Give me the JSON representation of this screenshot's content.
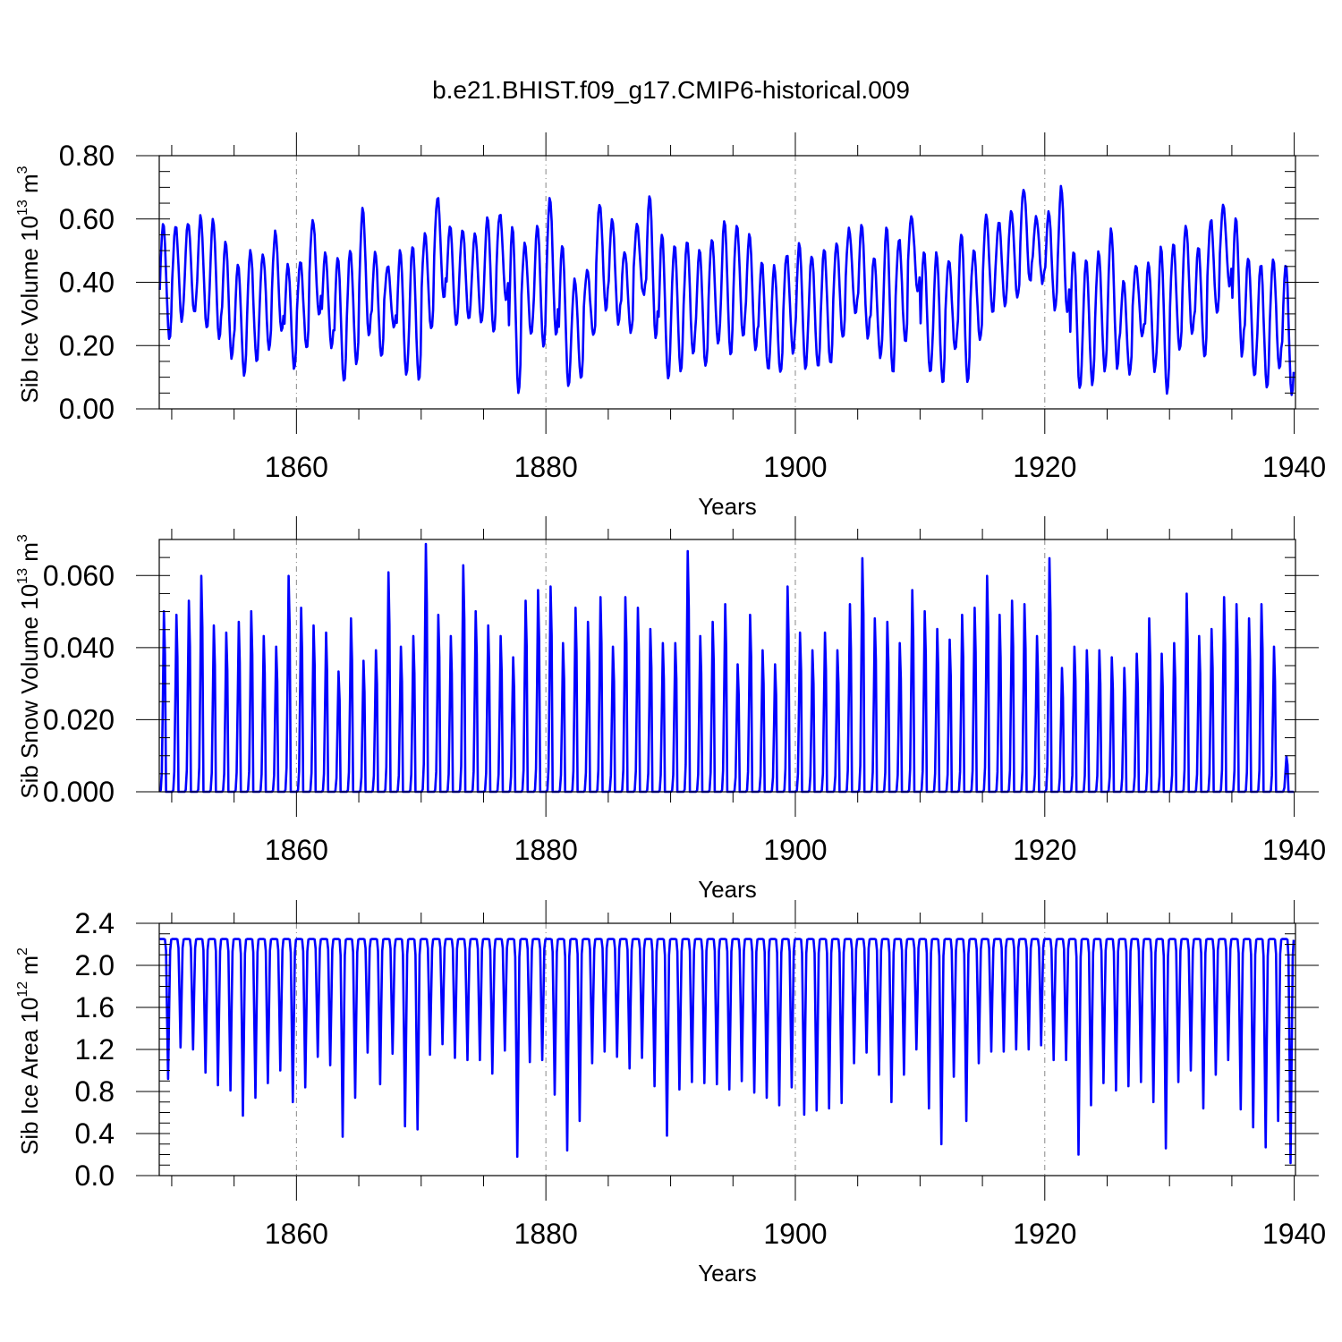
{
  "title": "b.e21.BHIST.f09_g17.CMIP6-historical.009",
  "chart_data": [
    {
      "type": "line",
      "ylabel_text": "Sib Ice Volume 10",
      "ylabel_exp": "13",
      "ylabel_unit": " m",
      "ylabel_unit_exp": "3",
      "xlabel": "Years",
      "xlim": [
        1849,
        1940.1
      ],
      "ylim": [
        0,
        0.8
      ],
      "x_ticks": [
        1860,
        1880,
        1900,
        1920,
        1940
      ],
      "y_ticks": [
        0,
        0.2,
        0.4,
        0.6,
        0.8
      ],
      "y_tick_labels": [
        "0.00",
        "0.20",
        "0.40",
        "0.60",
        "0.80"
      ],
      "grid": "vertical dashed at major x ticks",
      "series_color": "#0000ff",
      "annual_max": [
        0.59,
        0.58,
        0.59,
        0.61,
        0.6,
        0.53,
        0.45,
        0.5,
        0.49,
        0.56,
        0.46,
        0.47,
        0.6,
        0.49,
        0.48,
        0.5,
        0.63,
        0.5,
        0.45,
        0.5,
        0.52,
        0.55,
        0.67,
        0.58,
        0.57,
        0.56,
        0.61,
        0.62,
        0.57,
        0.52,
        0.58,
        0.67,
        0.52,
        0.41,
        0.44,
        0.65,
        0.6,
        0.5,
        0.58,
        0.68,
        0.55,
        0.52,
        0.53,
        0.5,
        0.54,
        0.6,
        0.58,
        0.55,
        0.46,
        0.45,
        0.49,
        0.52,
        0.49,
        0.51,
        0.52,
        0.57,
        0.58,
        0.48,
        0.58,
        0.54,
        0.61,
        0.5,
        0.49,
        0.47,
        0.56,
        0.5,
        0.61,
        0.59,
        0.62,
        0.7,
        0.61,
        0.62,
        0.7,
        0.5,
        0.47,
        0.5,
        0.57,
        0.4,
        0.45,
        0.46,
        0.51,
        0.52,
        0.58,
        0.51,
        0.6,
        0.64,
        0.6,
        0.48,
        0.46,
        0.47,
        0.46
      ],
      "annual_min": [
        0.22,
        0.28,
        0.3,
        0.25,
        0.22,
        0.16,
        0.11,
        0.15,
        0.19,
        0.24,
        0.13,
        0.19,
        0.3,
        0.19,
        0.08,
        0.14,
        0.23,
        0.16,
        0.26,
        0.11,
        0.09,
        0.25,
        0.35,
        0.26,
        0.28,
        0.27,
        0.24,
        0.34,
        0.05,
        0.24,
        0.2,
        0.23,
        0.07,
        0.1,
        0.23,
        0.31,
        0.27,
        0.24,
        0.36,
        0.22,
        0.09,
        0.12,
        0.17,
        0.13,
        0.21,
        0.17,
        0.23,
        0.18,
        0.12,
        0.11,
        0.18,
        0.13,
        0.13,
        0.14,
        0.22,
        0.3,
        0.22,
        0.16,
        0.11,
        0.21,
        0.37,
        0.11,
        0.08,
        0.19,
        0.08,
        0.22,
        0.3,
        0.33,
        0.35,
        0.4,
        0.4,
        0.31,
        0.3,
        0.06,
        0.08,
        0.12,
        0.13,
        0.11,
        0.23,
        0.12,
        0.05,
        0.19,
        0.23,
        0.16,
        0.3,
        0.39,
        0.17,
        0.1,
        0.07,
        0.12,
        0.04
      ],
      "last_value": 0.16
    },
    {
      "type": "line",
      "ylabel_text": "Sib Snow Volume 10",
      "ylabel_exp": "13",
      "ylabel_unit": " m",
      "ylabel_unit_exp": "3",
      "xlabel": "Years",
      "xlim": [
        1849,
        1940.1
      ],
      "ylim": [
        0,
        0.07
      ],
      "x_ticks": [
        1860,
        1880,
        1900,
        1920,
        1940
      ],
      "y_ticks": [
        0,
        0.02,
        0.04,
        0.06
      ],
      "y_tick_labels": [
        "0.000",
        "0.020",
        "0.040",
        "0.060"
      ],
      "grid": "vertical dashed at major x ticks",
      "series_color": "#0000ff",
      "annual_max": [
        0.051,
        0.05,
        0.054,
        0.061,
        0.047,
        0.045,
        0.048,
        0.051,
        0.044,
        0.041,
        0.061,
        0.052,
        0.047,
        0.045,
        0.034,
        0.049,
        0.037,
        0.04,
        0.062,
        0.041,
        0.044,
        0.07,
        0.05,
        0.044,
        0.064,
        0.051,
        0.047,
        0.044,
        0.038,
        0.054,
        0.057,
        0.058,
        0.042,
        0.052,
        0.048,
        0.055,
        0.041,
        0.055,
        0.052,
        0.046,
        0.042,
        0.042,
        0.068,
        0.044,
        0.048,
        0.053,
        0.036,
        0.05,
        0.04,
        0.036,
        0.058,
        0.045,
        0.04,
        0.045,
        0.04,
        0.053,
        0.066,
        0.049,
        0.048,
        0.042,
        0.057,
        0.051,
        0.046,
        0.043,
        0.05,
        0.052,
        0.061,
        0.05,
        0.054,
        0.053,
        0.044,
        0.066,
        0.035,
        0.041,
        0.04,
        0.04,
        0.038,
        0.035,
        0.039,
        0.049,
        0.039,
        0.042,
        0.056,
        0.044,
        0.046,
        0.055,
        0.053,
        0.049,
        0.053,
        0.041,
        0.01
      ],
      "annual_min": 0.0,
      "last_value": 0.01
    },
    {
      "type": "line",
      "ylabel_text": "Sib Ice Area 10",
      "ylabel_exp": "12",
      "ylabel_unit": " m",
      "ylabel_unit_exp": "2",
      "xlabel": "Years",
      "xlim": [
        1849,
        1940.1
      ],
      "ylim": [
        0,
        2.4
      ],
      "x_ticks": [
        1860,
        1880,
        1900,
        1920,
        1940
      ],
      "y_ticks": [
        0,
        0.4,
        0.8,
        1.2,
        1.6,
        2.0,
        2.4
      ],
      "y_tick_labels": [
        "0.0",
        "0.4",
        "0.8",
        "1.2",
        "1.6",
        "2.0",
        "2.4"
      ],
      "grid": "vertical dashed at major x ticks",
      "series_color": "#0000ff",
      "annual_max": 2.25,
      "annual_min": [
        0.92,
        1.22,
        1.2,
        0.98,
        0.86,
        0.81,
        0.57,
        0.74,
        0.88,
        1.0,
        0.7,
        0.84,
        1.13,
        1.05,
        0.37,
        0.74,
        1.17,
        0.87,
        1.16,
        0.47,
        0.44,
        1.15,
        1.25,
        1.12,
        1.1,
        1.1,
        0.97,
        1.19,
        0.18,
        1.08,
        1.1,
        0.77,
        0.24,
        0.52,
        1.07,
        1.18,
        1.13,
        1.02,
        1.12,
        0.85,
        0.38,
        0.82,
        0.89,
        0.88,
        0.87,
        0.82,
        0.9,
        0.79,
        0.74,
        0.67,
        0.84,
        0.58,
        0.62,
        0.64,
        0.69,
        1.07,
        1.17,
        0.96,
        0.7,
        0.96,
        1.2,
        0.64,
        0.3,
        0.94,
        0.52,
        1.07,
        1.18,
        1.18,
        1.2,
        1.2,
        1.24,
        1.1,
        1.1,
        0.2,
        0.67,
        0.88,
        0.81,
        0.85,
        0.89,
        0.7,
        0.26,
        0.89,
        1.0,
        0.64,
        0.96,
        1.1,
        0.63,
        0.46,
        0.27,
        0.52,
        0.12
      ],
      "last_value": 2.12
    }
  ]
}
